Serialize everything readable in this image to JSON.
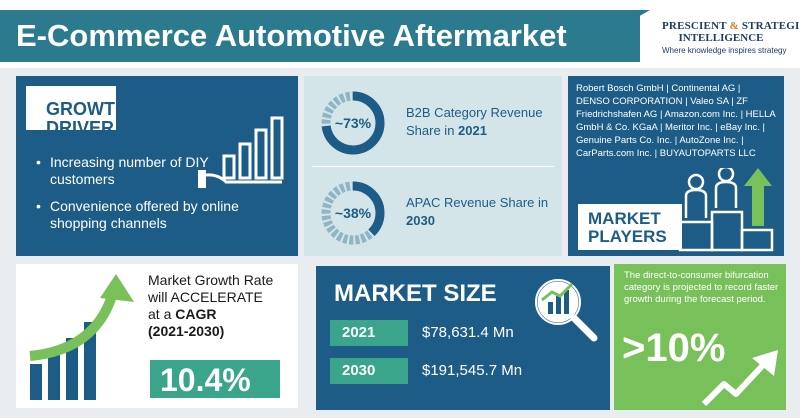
{
  "header": {
    "title": "E-Commerce Automotive Aftermarket",
    "logo_line1_a": "PRESCIENT",
    "logo_amp": " & ",
    "logo_line1_b": "STRATEGIC",
    "logo_line2": "INTELLIGENCE",
    "logo_tagline": "Where knowledge inspires strategy"
  },
  "growth_driver": {
    "heading_line1": "GROWTH",
    "heading_line2": "DRIVER",
    "items": [
      "Increasing number of DIY customers",
      "Convenience offered by online shopping channels"
    ]
  },
  "stats": [
    {
      "value": "~73%",
      "percent": 73,
      "label_text": "B2B Category Revenue Share in ",
      "label_year": "2021"
    },
    {
      "value": "~38%",
      "percent": 38,
      "label_text": "APAC Revenue Share in ",
      "label_year": "2030"
    }
  ],
  "players": {
    "list": "Robert Bosch GmbH | Continental AG | DENSO CORPORATION | Valeo SA | ZF Friedrichshafen AG | Amazon.com Inc. | HELLA GmbH & Co. KGaA | Meritor Inc. | eBay Inc. | Genuine Parts Co. Inc. | AutoZone Inc. | CarParts.com Inc. | BUYAUTOPARTS LLC",
    "heading_line1": "MARKET",
    "heading_line2": "PLAYERS"
  },
  "cagr": {
    "line1": "Market Growth Rate",
    "line2": "will ACCELERATE",
    "line3_prefix": "at a ",
    "line3_bold": "CAGR",
    "line4": "(2021-2030)",
    "value": "10.4%"
  },
  "market_size": {
    "title": "MARKET SIZE",
    "rows": [
      {
        "year": "2021",
        "value": "$78,631.4 Mn"
      },
      {
        "year": "2030",
        "value": "$191,545.7 Mn"
      }
    ]
  },
  "forecast": {
    "text": "The direct-to-consumer bifurcation category is projected to record faster growth during the forecast period.",
    "value": ">10%"
  },
  "colors": {
    "teal": "#2b7a8d",
    "navy": "#1d5c86",
    "green": "#3aa58a",
    "light_green": "#78c05a",
    "light_blue": "#d4e5ea"
  },
  "icons": [
    "bar-chart-hand-icon",
    "donut-gauge-icon",
    "people-podium-icon",
    "growth-arrow-icon",
    "magnifier-chart-icon",
    "trend-arrow-icon"
  ]
}
